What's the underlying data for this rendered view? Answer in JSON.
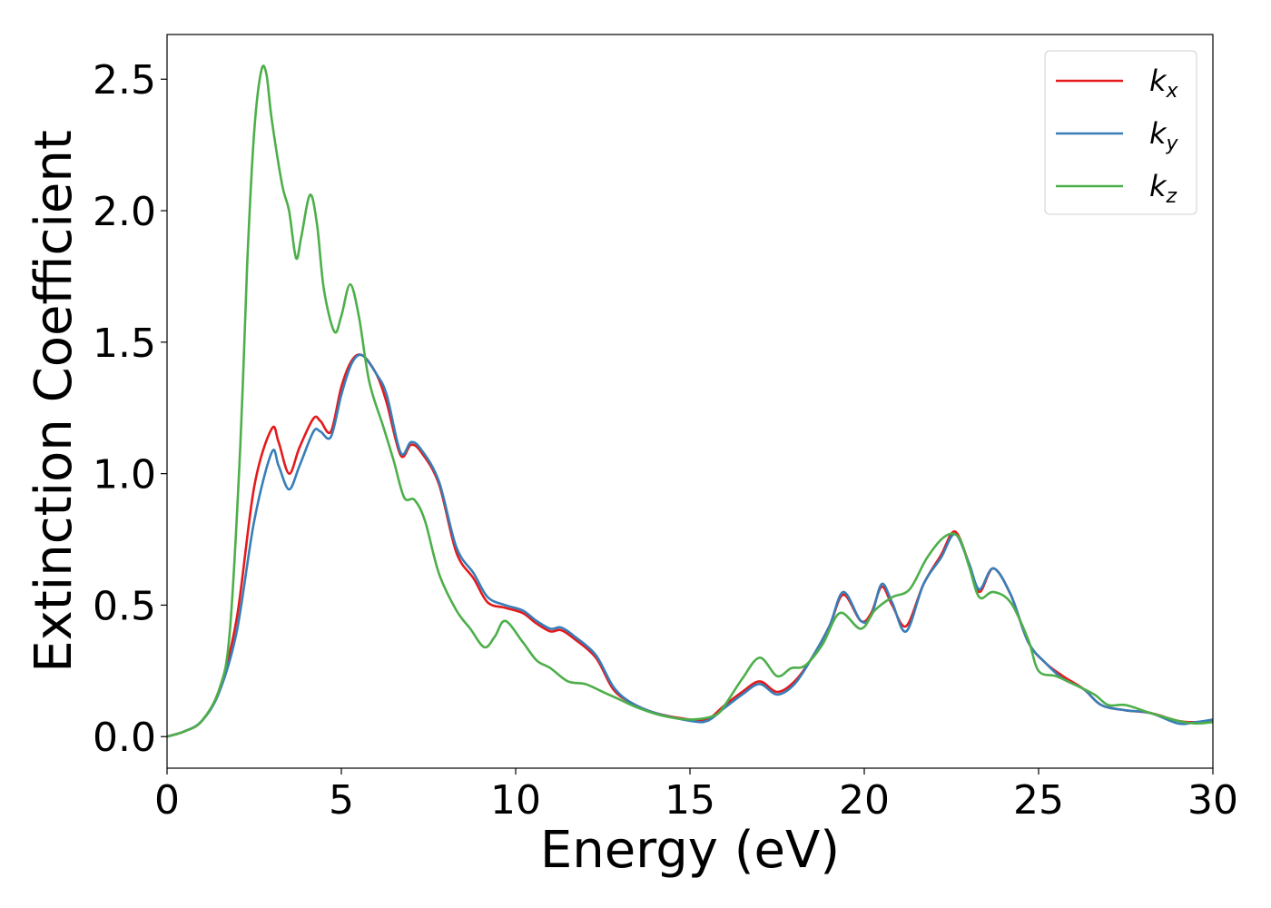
{
  "chart_data": {
    "type": "line",
    "xlabel": "Energy (eV)",
    "ylabel": "Extinction Coefficient",
    "xlim": [
      0,
      30
    ],
    "ylim": [
      -0.12,
      2.67
    ],
    "x_ticks": [
      0,
      5,
      10,
      15,
      20,
      25,
      30
    ],
    "y_ticks": [
      0.0,
      0.5,
      1.0,
      1.5,
      2.0,
      2.5
    ],
    "x_tick_labels": [
      "0",
      "5",
      "10",
      "15",
      "20",
      "25",
      "30"
    ],
    "y_tick_labels": [
      "0.0",
      "0.5",
      "1.0",
      "1.5",
      "2.0",
      "2.5"
    ],
    "grid": false,
    "legend_position": "top-right",
    "series": [
      {
        "name": "k_x",
        "label_base": "k",
        "label_sub": "x",
        "color": "#e41a1c",
        "points": [
          [
            0,
            0
          ],
          [
            0.5,
            0.02
          ],
          [
            1.0,
            0.06
          ],
          [
            1.5,
            0.18
          ],
          [
            2.0,
            0.45
          ],
          [
            2.5,
            0.95
          ],
          [
            3.0,
            1.17
          ],
          [
            3.2,
            1.12
          ],
          [
            3.5,
            1.0
          ],
          [
            3.8,
            1.1
          ],
          [
            4.2,
            1.21
          ],
          [
            4.4,
            1.2
          ],
          [
            4.7,
            1.16
          ],
          [
            5.0,
            1.33
          ],
          [
            5.3,
            1.43
          ],
          [
            5.6,
            1.45
          ],
          [
            6.0,
            1.38
          ],
          [
            6.3,
            1.27
          ],
          [
            6.7,
            1.07
          ],
          [
            7.0,
            1.11
          ],
          [
            7.3,
            1.08
          ],
          [
            7.8,
            0.96
          ],
          [
            8.3,
            0.7
          ],
          [
            8.8,
            0.6
          ],
          [
            9.2,
            0.51
          ],
          [
            9.7,
            0.49
          ],
          [
            10.2,
            0.47
          ],
          [
            10.6,
            0.43
          ],
          [
            11.0,
            0.4
          ],
          [
            11.3,
            0.405
          ],
          [
            11.7,
            0.37
          ],
          [
            12.3,
            0.3
          ],
          [
            12.8,
            0.18
          ],
          [
            13.3,
            0.13
          ],
          [
            14.0,
            0.09
          ],
          [
            15.0,
            0.065
          ],
          [
            15.5,
            0.065
          ],
          [
            16.0,
            0.12
          ],
          [
            16.5,
            0.17
          ],
          [
            17.0,
            0.21
          ],
          [
            17.5,
            0.17
          ],
          [
            18.0,
            0.21
          ],
          [
            18.5,
            0.3
          ],
          [
            19.0,
            0.42
          ],
          [
            19.4,
            0.54
          ],
          [
            19.9,
            0.44
          ],
          [
            20.2,
            0.47
          ],
          [
            20.5,
            0.57
          ],
          [
            20.8,
            0.5
          ],
          [
            21.2,
            0.42
          ],
          [
            21.7,
            0.58
          ],
          [
            22.2,
            0.69
          ],
          [
            22.6,
            0.78
          ],
          [
            23.0,
            0.66
          ],
          [
            23.3,
            0.55
          ],
          [
            23.7,
            0.64
          ],
          [
            24.2,
            0.54
          ],
          [
            24.7,
            0.36
          ],
          [
            25.2,
            0.28
          ],
          [
            25.7,
            0.23
          ],
          [
            26.3,
            0.18
          ],
          [
            26.8,
            0.12
          ],
          [
            27.5,
            0.1
          ],
          [
            28.2,
            0.09
          ],
          [
            29.0,
            0.06
          ],
          [
            29.5,
            0.055
          ],
          [
            30.0,
            0.06
          ]
        ]
      },
      {
        "name": "k_y",
        "label_base": "k",
        "label_sub": "y",
        "color": "#377eb8",
        "points": [
          [
            0,
            0
          ],
          [
            0.5,
            0.02
          ],
          [
            1.0,
            0.06
          ],
          [
            1.5,
            0.17
          ],
          [
            2.0,
            0.4
          ],
          [
            2.5,
            0.82
          ],
          [
            3.0,
            1.08
          ],
          [
            3.2,
            1.03
          ],
          [
            3.5,
            0.94
          ],
          [
            3.8,
            1.03
          ],
          [
            4.2,
            1.16
          ],
          [
            4.4,
            1.16
          ],
          [
            4.7,
            1.14
          ],
          [
            5.0,
            1.3
          ],
          [
            5.3,
            1.42
          ],
          [
            5.6,
            1.45
          ],
          [
            6.0,
            1.38
          ],
          [
            6.3,
            1.3
          ],
          [
            6.7,
            1.08
          ],
          [
            7.0,
            1.12
          ],
          [
            7.3,
            1.09
          ],
          [
            7.8,
            0.97
          ],
          [
            8.3,
            0.72
          ],
          [
            8.8,
            0.62
          ],
          [
            9.2,
            0.53
          ],
          [
            9.7,
            0.5
          ],
          [
            10.2,
            0.48
          ],
          [
            10.6,
            0.44
          ],
          [
            11.0,
            0.41
          ],
          [
            11.3,
            0.415
          ],
          [
            11.7,
            0.38
          ],
          [
            12.3,
            0.31
          ],
          [
            12.8,
            0.19
          ],
          [
            13.3,
            0.13
          ],
          [
            14.0,
            0.09
          ],
          [
            15.0,
            0.06
          ],
          [
            15.5,
            0.06
          ],
          [
            16.0,
            0.11
          ],
          [
            16.5,
            0.16
          ],
          [
            17.0,
            0.2
          ],
          [
            17.5,
            0.16
          ],
          [
            18.0,
            0.2
          ],
          [
            18.5,
            0.3
          ],
          [
            19.0,
            0.42
          ],
          [
            19.4,
            0.55
          ],
          [
            19.9,
            0.44
          ],
          [
            20.2,
            0.46
          ],
          [
            20.5,
            0.58
          ],
          [
            20.8,
            0.51
          ],
          [
            21.2,
            0.4
          ],
          [
            21.7,
            0.58
          ],
          [
            22.2,
            0.68
          ],
          [
            22.6,
            0.77
          ],
          [
            23.0,
            0.66
          ],
          [
            23.3,
            0.56
          ],
          [
            23.7,
            0.64
          ],
          [
            24.2,
            0.54
          ],
          [
            24.7,
            0.36
          ],
          [
            25.2,
            0.28
          ],
          [
            25.7,
            0.22
          ],
          [
            26.3,
            0.18
          ],
          [
            26.8,
            0.12
          ],
          [
            27.5,
            0.1
          ],
          [
            28.2,
            0.09
          ],
          [
            29.0,
            0.05
          ],
          [
            29.5,
            0.055
          ],
          [
            30.0,
            0.065
          ]
        ]
      },
      {
        "name": "k_z",
        "label_base": "k",
        "label_sub": "z",
        "color": "#4daf4a",
        "points": [
          [
            0,
            0
          ],
          [
            0.5,
            0.02
          ],
          [
            1.0,
            0.06
          ],
          [
            1.5,
            0.18
          ],
          [
            1.8,
            0.4
          ],
          [
            2.1,
            1.1
          ],
          [
            2.3,
            1.8
          ],
          [
            2.5,
            2.3
          ],
          [
            2.7,
            2.53
          ],
          [
            2.85,
            2.52
          ],
          [
            3.0,
            2.35
          ],
          [
            3.3,
            2.1
          ],
          [
            3.5,
            2.0
          ],
          [
            3.7,
            1.82
          ],
          [
            3.85,
            1.9
          ],
          [
            4.1,
            2.06
          ],
          [
            4.3,
            1.95
          ],
          [
            4.5,
            1.7
          ],
          [
            4.8,
            1.54
          ],
          [
            5.0,
            1.6
          ],
          [
            5.25,
            1.72
          ],
          [
            5.5,
            1.6
          ],
          [
            5.8,
            1.35
          ],
          [
            6.2,
            1.18
          ],
          [
            6.5,
            1.05
          ],
          [
            6.8,
            0.91
          ],
          [
            7.1,
            0.9
          ],
          [
            7.4,
            0.82
          ],
          [
            7.8,
            0.62
          ],
          [
            8.3,
            0.48
          ],
          [
            8.7,
            0.41
          ],
          [
            9.1,
            0.34
          ],
          [
            9.4,
            0.38
          ],
          [
            9.7,
            0.44
          ],
          [
            10.2,
            0.36
          ],
          [
            10.6,
            0.29
          ],
          [
            11.0,
            0.26
          ],
          [
            11.5,
            0.21
          ],
          [
            12.0,
            0.2
          ],
          [
            12.5,
            0.17
          ],
          [
            13.0,
            0.14
          ],
          [
            13.5,
            0.11
          ],
          [
            14.2,
            0.08
          ],
          [
            15.0,
            0.065
          ],
          [
            15.7,
            0.08
          ],
          [
            16.0,
            0.12
          ],
          [
            16.5,
            0.22
          ],
          [
            17.0,
            0.3
          ],
          [
            17.5,
            0.23
          ],
          [
            17.9,
            0.26
          ],
          [
            18.3,
            0.27
          ],
          [
            18.8,
            0.35
          ],
          [
            19.3,
            0.47
          ],
          [
            19.9,
            0.41
          ],
          [
            20.3,
            0.48
          ],
          [
            20.8,
            0.53
          ],
          [
            21.3,
            0.56
          ],
          [
            21.8,
            0.68
          ],
          [
            22.3,
            0.76
          ],
          [
            22.7,
            0.76
          ],
          [
            23.0,
            0.65
          ],
          [
            23.3,
            0.53
          ],
          [
            23.7,
            0.55
          ],
          [
            24.2,
            0.51
          ],
          [
            24.7,
            0.37
          ],
          [
            25.0,
            0.25
          ],
          [
            25.5,
            0.23
          ],
          [
            26.0,
            0.2
          ],
          [
            26.6,
            0.16
          ],
          [
            27.0,
            0.12
          ],
          [
            27.5,
            0.12
          ],
          [
            28.2,
            0.09
          ],
          [
            29.0,
            0.06
          ],
          [
            29.5,
            0.05
          ],
          [
            30.0,
            0.055
          ]
        ]
      }
    ]
  }
}
